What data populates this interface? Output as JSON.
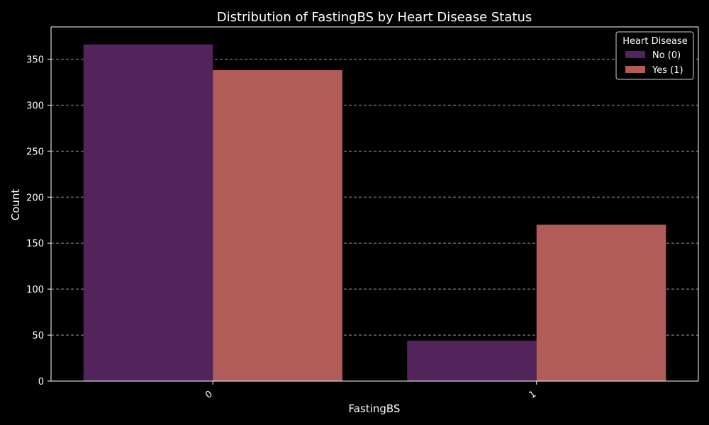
{
  "chart_data": {
    "type": "bar",
    "title": "Distribution of FastingBS by Heart Disease Status",
    "xlabel": "FastingBS",
    "ylabel": "Count",
    "categories": [
      "0",
      "1"
    ],
    "series": [
      {
        "name": "No (0)",
        "values": [
          366,
          44
        ],
        "color": "#53245c"
      },
      {
        "name": "Yes (1)",
        "values": [
          338,
          170
        ],
        "color": "#b25c5a"
      }
    ],
    "ylim": [
      0,
      385
    ],
    "yticks": [
      0,
      50,
      100,
      150,
      200,
      250,
      300,
      350
    ],
    "grid": "horizontal dashed",
    "legend": {
      "title": "Heart Disease",
      "placement": "top-right"
    },
    "colors": {
      "background": "#000000",
      "text": "#ffffff",
      "grid": "#9a9a9a",
      "axis": "#ffffff"
    }
  }
}
